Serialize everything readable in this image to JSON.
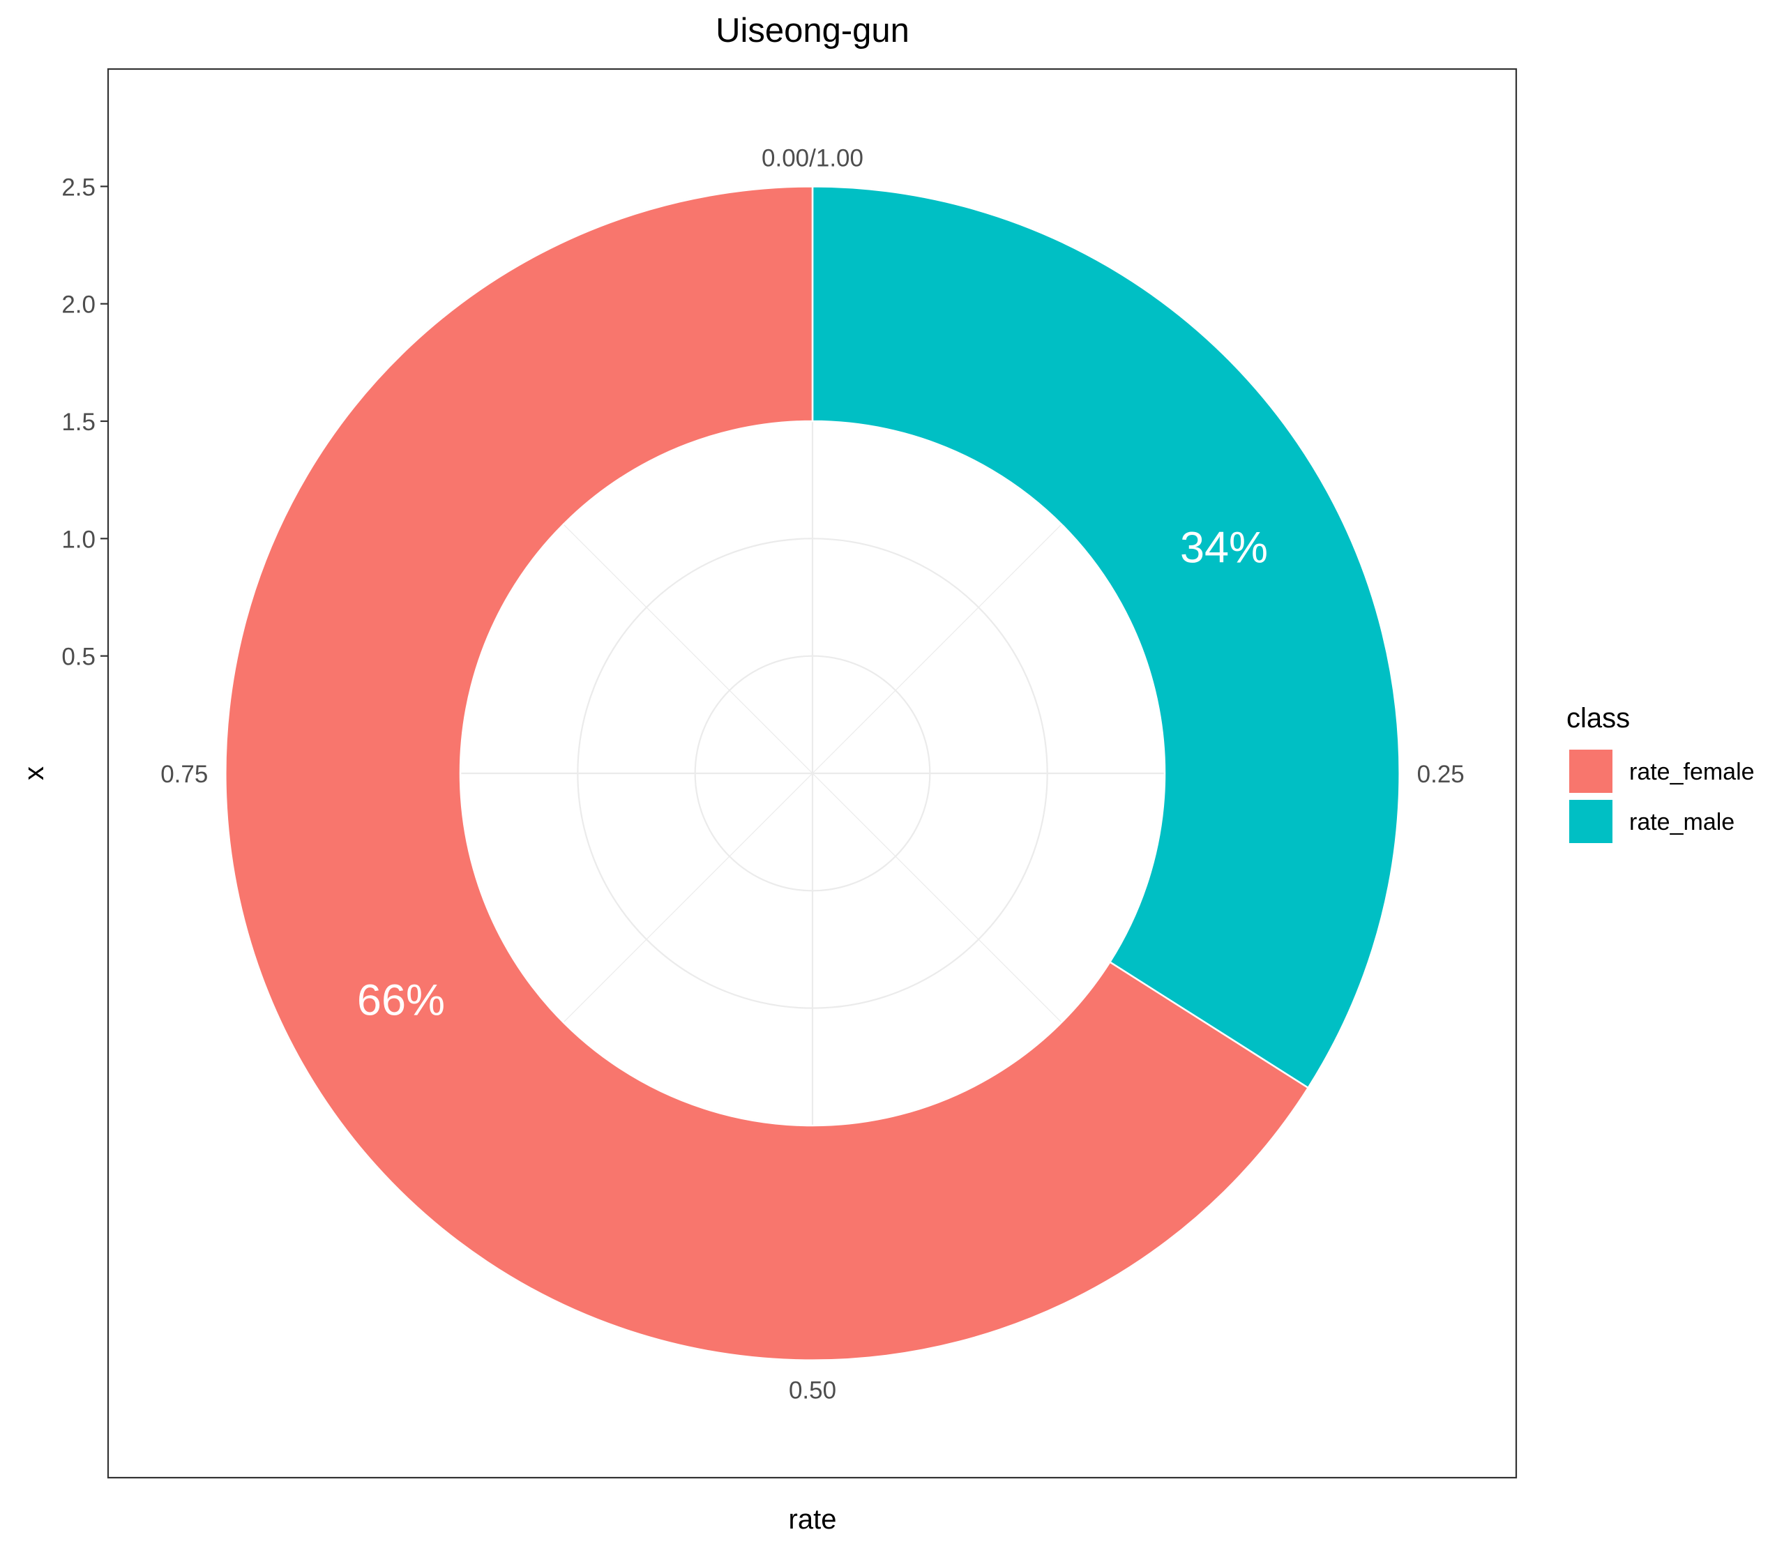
{
  "chart_data": {
    "type": "pie",
    "variant": "donut",
    "coord": "polar",
    "title": "Uiseong-gun",
    "xlabel": "rate",
    "ylabel": "x",
    "theme": "bw",
    "grid": true,
    "legend": {
      "title": "class",
      "position": "right",
      "entries": [
        "rate_female",
        "rate_male"
      ]
    },
    "series": [
      {
        "name": "rate_male",
        "value": 0.34,
        "label": "34%",
        "color": "#00BFC4"
      },
      {
        "name": "rate_female",
        "value": 0.66,
        "label": "66%",
        "color": "#F8766D"
      }
    ],
    "y_axis": {
      "range": [
        0,
        3
      ],
      "ring_inner": 1.5,
      "ring_outer": 2.5,
      "ticks": [
        {
          "value": 0.5,
          "label": "0.5"
        },
        {
          "value": 1.0,
          "label": "1.0"
        },
        {
          "value": 1.5,
          "label": "1.5"
        },
        {
          "value": 2.0,
          "label": "2.0"
        },
        {
          "value": 2.5,
          "label": "2.5"
        }
      ]
    },
    "angle_axis": {
      "range": [
        0,
        1
      ],
      "ticks": [
        {
          "value": 0,
          "label": "0.00/1.00"
        },
        {
          "value": 0.25,
          "label": "0.25"
        },
        {
          "value": 0.5,
          "label": "0.50"
        },
        {
          "value": 0.75,
          "label": "0.75"
        }
      ]
    },
    "colors": {
      "grid": "#EBEBEB",
      "panel_border": "#333333",
      "tick_text": "#4D4D4D",
      "axis_title": "#000000",
      "slice_label": "#FFFFFF"
    }
  }
}
